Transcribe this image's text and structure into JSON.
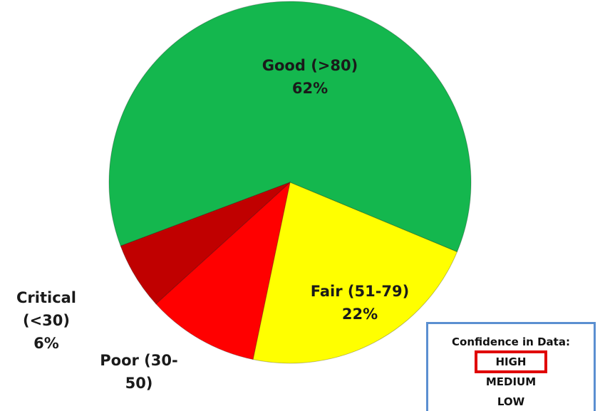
{
  "chart_data": {
    "type": "pie",
    "categories": [
      "Good (>80)",
      "Fair (51-79)",
      "Poor (30-50)",
      "Critical (<30)"
    ],
    "values": [
      62,
      22,
      10,
      6
    ],
    "value_labels": [
      "62%",
      "22%",
      null,
      "6%"
    ],
    "colors": [
      "#14b74e",
      "#ffff00",
      "#ff0000",
      "#c00000"
    ]
  },
  "confidence": {
    "title": "Confidence in Data:",
    "levels": [
      "HIGH",
      "MEDIUM",
      "LOW"
    ],
    "selected": 0
  }
}
